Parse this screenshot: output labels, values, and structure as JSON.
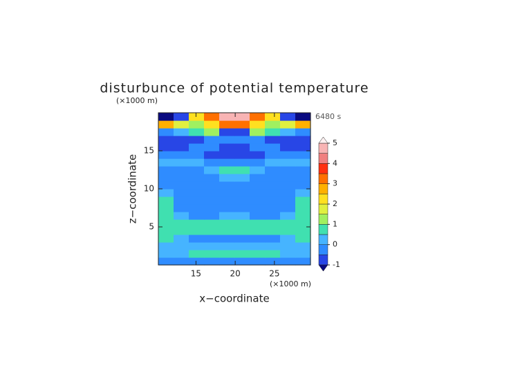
{
  "chart_data": {
    "type": "contour",
    "title": "disturbunce of potential temperature",
    "time_label": "6480 s",
    "x_label": "x−coordinate",
    "y_label": "z−coordinate",
    "x_unit": "(×1000 m)",
    "y_unit": "(×1000 m)",
    "xlim": [
      10.2,
      29.6
    ],
    "ylim": [
      0,
      20
    ],
    "xticks": [
      15,
      20,
      25
    ],
    "yticks": [
      5,
      10,
      15
    ],
    "x": [
      11.17,
      13.11,
      15.05,
      16.99,
      18.93,
      20.87,
      22.81,
      24.75,
      26.69,
      28.63
    ],
    "y": [
      0.5,
      1.5,
      2.5,
      3.5,
      4.5,
      5.5,
      6.5,
      7.5,
      8.5,
      9.5,
      10.5,
      11.5,
      12.5,
      13.5,
      14.5,
      15.5,
      16.5,
      17.5,
      18.5,
      19.5
    ],
    "z": [
      [
        -0.3,
        -0.3,
        -0.3,
        -0.3,
        -0.3,
        -0.3,
        -0.3,
        -0.3,
        -0.3,
        -0.3
      ],
      [
        0.3,
        0.3,
        0.7,
        0.7,
        0.7,
        0.7,
        0.7,
        0.7,
        0.3,
        0.3
      ],
      [
        0.3,
        0.3,
        0.3,
        0.3,
        0.3,
        0.3,
        0.3,
        0.3,
        0.3,
        0.3
      ],
      [
        0.7,
        0.3,
        -0.2,
        -0.2,
        -0.2,
        -0.2,
        -0.2,
        -0.2,
        0.3,
        0.7
      ],
      [
        0.7,
        0.7,
        0.7,
        0.7,
        0.7,
        0.7,
        0.7,
        0.7,
        0.7,
        0.7
      ],
      [
        0.7,
        0.7,
        0.8,
        0.8,
        0.7,
        0.7,
        0.8,
        0.8,
        0.7,
        0.7
      ],
      [
        0.7,
        0.3,
        -0.2,
        -0.2,
        0.3,
        0.3,
        -0.2,
        -0.2,
        0.3,
        0.7
      ],
      [
        0.7,
        -0.2,
        -0.3,
        -0.3,
        -0.3,
        -0.3,
        -0.3,
        -0.3,
        -0.2,
        0.7
      ],
      [
        0.6,
        -0.2,
        -0.3,
        -0.3,
        -0.3,
        -0.3,
        -0.3,
        -0.3,
        -0.2,
        0.6
      ],
      [
        0.3,
        -0.2,
        -0.3,
        -0.3,
        -0.3,
        -0.3,
        -0.3,
        -0.3,
        -0.2,
        0.3
      ],
      [
        -0.2,
        -0.2,
        -0.2,
        -0.2,
        -0.2,
        -0.2,
        -0.2,
        -0.2,
        -0.2,
        -0.2
      ],
      [
        -0.2,
        -0.2,
        -0.2,
        -0.2,
        0.3,
        0.3,
        -0.2,
        -0.2,
        -0.2,
        -0.2
      ],
      [
        -0.2,
        -0.2,
        -0.2,
        0.3,
        0.6,
        0.6,
        0.3,
        -0.2,
        -0.2,
        -0.2
      ],
      [
        0.3,
        0.3,
        0.3,
        -0.2,
        -0.3,
        -0.3,
        -0.2,
        0.3,
        0.3,
        0.3
      ],
      [
        -0.3,
        -0.3,
        -0.3,
        -0.6,
        -0.8,
        -0.8,
        -0.6,
        -0.3,
        -0.3,
        -0.3
      ],
      [
        -0.6,
        -0.6,
        -0.3,
        -0.3,
        -0.6,
        -0.6,
        -0.3,
        -0.3,
        -0.6,
        -0.6
      ],
      [
        -0.8,
        -0.8,
        -0.8,
        -0.3,
        -0.3,
        -0.3,
        -0.3,
        -0.8,
        -0.8,
        -0.8
      ],
      [
        -0.3,
        0.3,
        0.7,
        1.2,
        -0.6,
        -0.6,
        1.2,
        0.7,
        0.3,
        -0.3
      ],
      [
        2.7,
        1.8,
        1.2,
        2.2,
        3.3,
        3.3,
        2.2,
        1.2,
        1.8,
        2.7
      ],
      [
        -1.2,
        -0.8,
        2.2,
        3.3,
        4.6,
        4.6,
        3.3,
        2.2,
        -0.8,
        -1.2
      ]
    ],
    "colorbar": {
      "levels": [
        -1,
        -0.5,
        0,
        0.5,
        1,
        1.5,
        2,
        2.5,
        3,
        3.5,
        4,
        4.5,
        5
      ],
      "colors": [
        "#2846e6",
        "#2f8cff",
        "#46b4ff",
        "#40e0b0",
        "#a0f060",
        "#e0f040",
        "#ffe020",
        "#ffb000",
        "#ff7000",
        "#ff3010",
        "#f08080",
        "#f8b4b4"
      ],
      "under_color": "#0a0a80",
      "over_color": "#fff0f0",
      "ticks": [
        -1,
        0,
        1,
        2,
        3,
        4,
        5
      ]
    }
  }
}
